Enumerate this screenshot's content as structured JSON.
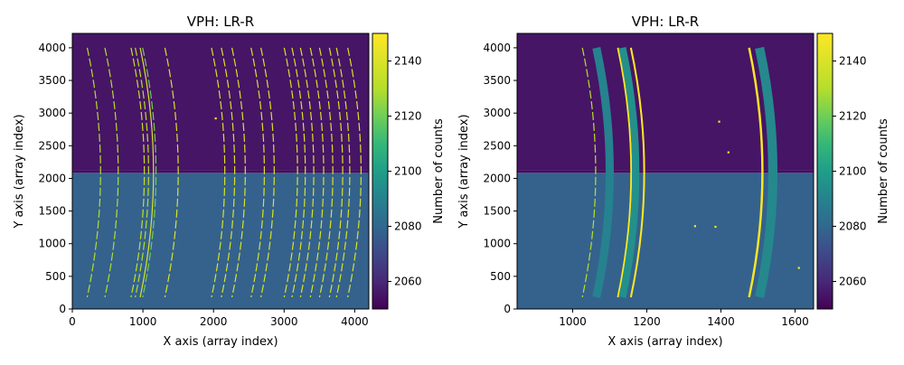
{
  "chart_data": [
    {
      "type": "heatmap",
      "title": "VPH: LR-R",
      "xlabel": "X axis (array index)",
      "ylabel": "Y axis (array index)",
      "xlim": [
        0,
        4200
      ],
      "ylim": [
        0,
        4220
      ],
      "xticks": [
        0,
        1000,
        2000,
        3000,
        4000
      ],
      "yticks": [
        0,
        500,
        1000,
        1500,
        2000,
        2500,
        3000,
        3500,
        4000
      ],
      "gap_rows": [
        2085,
        2125
      ],
      "background": {
        "top_half": 2055,
        "bottom_half": 2078
      },
      "colorbar": {
        "label": "Number of counts",
        "range": [
          2050,
          2150
        ],
        "ticks": [
          2060,
          2080,
          2100,
          2120,
          2140
        ]
      },
      "lines": [
        {
          "x": 400,
          "w": 14,
          "c": 2130,
          "d": "d"
        },
        {
          "x": 650,
          "w": 14,
          "c": 2130,
          "d": "d"
        },
        {
          "x": 1020,
          "w": 14,
          "c": 2135,
          "d": "d"
        },
        {
          "x": 1080,
          "w": 14,
          "c": 2130,
          "d": "d"
        },
        {
          "x": 1150,
          "w": 14,
          "c": 2140,
          "d": "s"
        },
        {
          "x": 1185,
          "w": 10,
          "c": 2120,
          "d": "d"
        },
        {
          "x": 1500,
          "w": 14,
          "c": 2140,
          "d": "d"
        },
        {
          "x": 2160,
          "w": 14,
          "c": 2140,
          "d": "d"
        },
        {
          "x": 2300,
          "w": 14,
          "c": 2140,
          "d": "d"
        },
        {
          "x": 2450,
          "w": 14,
          "c": 2140,
          "d": "d"
        },
        {
          "x": 2720,
          "w": 14,
          "c": 2140,
          "d": "d"
        },
        {
          "x": 2860,
          "w": 14,
          "c": 2140,
          "d": "d"
        },
        {
          "x": 3190,
          "w": 14,
          "c": 2140,
          "d": "d"
        },
        {
          "x": 3300,
          "w": 14,
          "c": 2140,
          "d": "d"
        },
        {
          "x": 3420,
          "w": 14,
          "c": 2140,
          "d": "d"
        },
        {
          "x": 3560,
          "w": 14,
          "c": 2140,
          "d": "d"
        },
        {
          "x": 3690,
          "w": 14,
          "c": 2140,
          "d": "d"
        },
        {
          "x": 3830,
          "w": 14,
          "c": 2140,
          "d": "d"
        },
        {
          "x": 3930,
          "w": 14,
          "c": 2140,
          "d": "d"
        },
        {
          "x": 4090,
          "w": 14,
          "c": 2140,
          "d": "d"
        }
      ],
      "dots": [
        {
          "x": 2030,
          "y": 2920
        }
      ]
    },
    {
      "type": "heatmap",
      "title": "VPH: LR-R",
      "xlabel": "X axis (array index)",
      "ylabel": "Y axis (array index)",
      "xlim": [
        850,
        1650
      ],
      "ylim": [
        0,
        4220
      ],
      "xticks": [
        1000,
        1200,
        1400,
        1600
      ],
      "yticks": [
        0,
        500,
        1000,
        1500,
        2000,
        2500,
        3000,
        3500,
        4000
      ],
      "gap_rows": [
        2085,
        2125
      ],
      "background": {
        "top_half": 2055,
        "bottom_half": 2078
      },
      "colorbar": {
        "label": "Number of counts",
        "range": [
          2050,
          2150
        ],
        "ticks": [
          2060,
          2080,
          2100,
          2120,
          2140
        ]
      },
      "lines": [
        {
          "x": 1062,
          "w": 3,
          "c": 2130,
          "d": "d"
        },
        {
          "x": 1100,
          "w": 22,
          "c": 2090,
          "d": "s"
        },
        {
          "x": 1158,
          "w": 5,
          "c": 2150,
          "d": "s"
        },
        {
          "x": 1170,
          "w": 20,
          "c": 2095,
          "d": "s"
        },
        {
          "x": 1193,
          "w": 5,
          "c": 2150,
          "d": "s"
        },
        {
          "x": 1512,
          "w": 6,
          "c": 2150,
          "d": "s"
        },
        {
          "x": 1540,
          "w": 25,
          "c": 2092,
          "d": "s"
        }
      ],
      "dots": [
        {
          "x": 1610,
          "y": 630
        },
        {
          "x": 1395,
          "y": 2870
        },
        {
          "x": 1420,
          "y": 2400
        },
        {
          "x": 1330,
          "y": 1270
        },
        {
          "x": 1385,
          "y": 1260
        }
      ]
    }
  ]
}
